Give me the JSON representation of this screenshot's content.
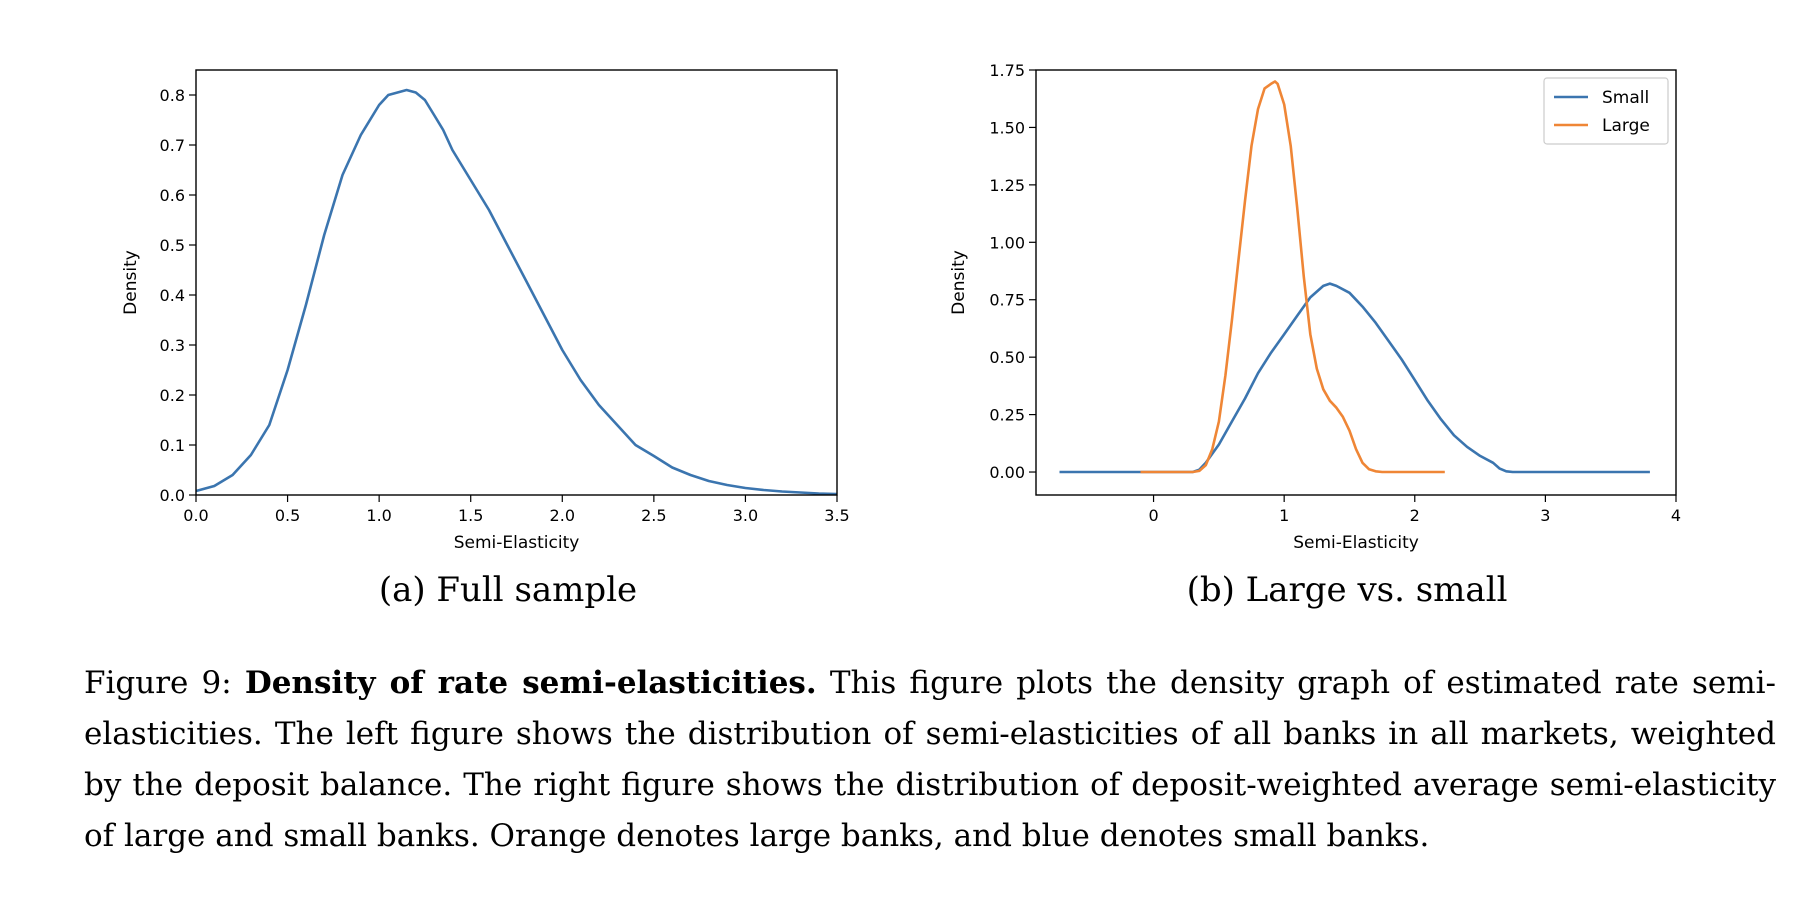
{
  "chart_data": [
    {
      "type": "line",
      "xlabel": "Semi-Elasticity",
      "ylabel": "Density",
      "xlim": [
        0.0,
        3.5
      ],
      "ylim": [
        0.0,
        0.85
      ],
      "xticks": [
        "0.0",
        "0.5",
        "1.0",
        "1.5",
        "2.0",
        "2.5",
        "3.0",
        "3.5"
      ],
      "yticks": [
        "0.0",
        "0.1",
        "0.2",
        "0.3",
        "0.4",
        "0.5",
        "0.6",
        "0.7",
        "0.8"
      ],
      "legend": "none",
      "caption": "(a) Full sample",
      "series": [
        {
          "color": "#3b75af",
          "x": [
            0.0,
            0.1,
            0.2,
            0.3,
            0.4,
            0.5,
            0.6,
            0.7,
            0.8,
            0.9,
            1.0,
            1.05,
            1.1,
            1.15,
            1.2,
            1.25,
            1.3,
            1.35,
            1.4,
            1.5,
            1.6,
            1.7,
            1.8,
            1.9,
            2.0,
            2.1,
            2.2,
            2.3,
            2.4,
            2.5,
            2.6,
            2.7,
            2.8,
            2.9,
            3.0,
            3.1,
            3.2,
            3.3,
            3.4,
            3.5
          ],
          "values": [
            0.008,
            0.018,
            0.04,
            0.08,
            0.14,
            0.25,
            0.38,
            0.52,
            0.64,
            0.72,
            0.78,
            0.8,
            0.805,
            0.81,
            0.805,
            0.79,
            0.76,
            0.73,
            0.69,
            0.63,
            0.57,
            0.5,
            0.43,
            0.36,
            0.29,
            0.23,
            0.18,
            0.14,
            0.1,
            0.078,
            0.055,
            0.04,
            0.028,
            0.02,
            0.014,
            0.01,
            0.007,
            0.005,
            0.003,
            0.002
          ]
        }
      ]
    },
    {
      "type": "line",
      "xlabel": "Semi-Elasticity",
      "ylabel": "Density",
      "xlim": [
        -0.9,
        4.0
      ],
      "ylim": [
        -0.1,
        1.75
      ],
      "xticks": [
        "0",
        "1",
        "2",
        "3",
        "4"
      ],
      "yticks": [
        "0.00",
        "0.25",
        "0.50",
        "0.75",
        "1.00",
        "1.25",
        "1.50",
        "1.75"
      ],
      "legend": "top-right",
      "caption": "(b) Large vs. small",
      "series": [
        {
          "name": "Small",
          "color": "#3b75af",
          "x": [
            -0.72,
            0.0,
            0.3,
            0.35,
            0.4,
            0.5,
            0.6,
            0.7,
            0.8,
            0.9,
            1.0,
            1.1,
            1.2,
            1.3,
            1.35,
            1.4,
            1.5,
            1.55,
            1.6,
            1.7,
            1.8,
            1.9,
            2.0,
            2.1,
            2.2,
            2.3,
            2.4,
            2.5,
            2.6,
            2.65,
            2.7,
            2.75,
            3.0,
            3.8
          ],
          "values": [
            0.0,
            0.0,
            0.0,
            0.01,
            0.04,
            0.12,
            0.22,
            0.32,
            0.43,
            0.52,
            0.6,
            0.68,
            0.76,
            0.81,
            0.82,
            0.81,
            0.78,
            0.75,
            0.72,
            0.65,
            0.57,
            0.49,
            0.4,
            0.31,
            0.23,
            0.16,
            0.11,
            0.07,
            0.04,
            0.015,
            0.003,
            0.0,
            0.0,
            0.0
          ]
        },
        {
          "name": "Large",
          "color": "#ef8636",
          "x": [
            -0.1,
            0.3,
            0.35,
            0.4,
            0.45,
            0.5,
            0.55,
            0.6,
            0.65,
            0.7,
            0.75,
            0.8,
            0.85,
            0.9,
            0.93,
            0.95,
            1.0,
            1.05,
            1.1,
            1.15,
            1.2,
            1.25,
            1.3,
            1.35,
            1.4,
            1.45,
            1.5,
            1.55,
            1.6,
            1.65,
            1.7,
            1.75,
            1.8,
            2.0,
            2.23
          ],
          "values": [
            0.0,
            0.0,
            0.005,
            0.03,
            0.1,
            0.22,
            0.42,
            0.66,
            0.92,
            1.18,
            1.42,
            1.58,
            1.67,
            1.69,
            1.7,
            1.69,
            1.6,
            1.42,
            1.15,
            0.85,
            0.6,
            0.45,
            0.36,
            0.31,
            0.28,
            0.24,
            0.18,
            0.1,
            0.04,
            0.012,
            0.003,
            0.0,
            0.0,
            0.0,
            0.0
          ]
        }
      ]
    }
  ],
  "caption": {
    "prefix": "Figure 9: ",
    "bold": "Density of rate semi-elasticities.",
    "body": " This figure plots the density graph of estimated rate semi-elasticities. The left figure shows the distribution of semi-elasticities of all banks in all markets, weighted by the deposit balance. The right figure shows the distribution of deposit-weighted average semi-elasticity of large and small banks. Orange denotes large banks, and blue denotes small banks."
  }
}
